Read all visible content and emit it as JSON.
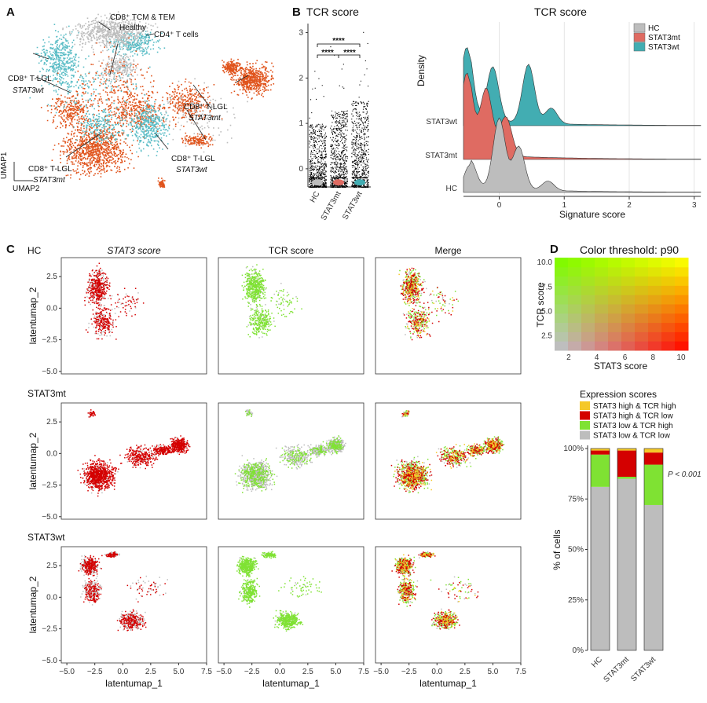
{
  "panels": {
    "a": "A",
    "b": "B",
    "c": "C",
    "d": "D"
  },
  "colors": {
    "hc": "#bdbdbd",
    "stat3mt": "#e0531b",
    "stat3wt": "#5bbdc6",
    "red": "#d40000",
    "green": "#7fe233",
    "yellow": "#f5c829",
    "mtRidge": "#df6b62",
    "wtRidge": "#42adb2"
  },
  "panel_a": {
    "annotations": [
      {
        "main": "CD8⁺ TCM & TEM",
        "sub": "Healthy"
      },
      {
        "main": "CD4⁺ T cells",
        "sub": ""
      },
      {
        "main": "CD8⁺ T-LGL",
        "sub": "STAT3wt"
      },
      {
        "main": "CD8⁺ T-LGL",
        "sub": "STAT3mt"
      },
      {
        "main": "CD8⁺ T-LGL",
        "sub": "STAT3wt"
      },
      {
        "main": "CD8⁺ T-LGL",
        "sub": "STAT3mt"
      }
    ],
    "axis1": "UMAP1",
    "axis2": "UMAP2"
  },
  "chart_data": [
    {
      "id": "B-violin",
      "type": "violin",
      "title": "TCR score",
      "categories": [
        "HC",
        "STAT3mt",
        "STAT3wt"
      ],
      "ylim": [
        -0.4,
        3.2
      ],
      "yticks": [
        0,
        1,
        2,
        3
      ],
      "approx_max": [
        1.0,
        1.3,
        1.5
      ],
      "approx_min": [
        -0.4,
        -0.4,
        -0.4
      ],
      "significance": [
        {
          "pair": [
            "HC",
            "STAT3wt"
          ],
          "label": "****"
        },
        {
          "pair": [
            "HC",
            "STAT3mt"
          ],
          "label": "****"
        },
        {
          "pair": [
            "STAT3mt",
            "STAT3wt"
          ],
          "label": "****"
        }
      ]
    },
    {
      "id": "B-ridge",
      "type": "area",
      "title": "TCR score",
      "xlabel": "Signature score",
      "ylabel": "Density",
      "xlim": [
        -0.55,
        3.1
      ],
      "xticks": [
        0,
        1,
        2,
        3
      ],
      "legend": {
        "position": "top-right",
        "entries": [
          "HC",
          "STAT3mt",
          "STAT3wt"
        ]
      },
      "series": [
        {
          "name": "HC",
          "modes": [
            {
              "x": -0.45,
              "h": 0.35
            },
            {
              "x": 0.0,
              "h": 0.9
            },
            {
              "x": 0.3,
              "h": 0.55
            },
            {
              "x": 0.75,
              "h": 0.12
            }
          ]
        },
        {
          "name": "STAT3mt",
          "modes": [
            {
              "x": -0.5,
              "h": 1.1
            },
            {
              "x": -0.2,
              "h": 0.85
            },
            {
              "x": 0.1,
              "h": 0.5
            }
          ]
        },
        {
          "name": "STAT3wt",
          "modes": [
            {
              "x": -0.5,
              "h": 1.0
            },
            {
              "x": -0.1,
              "h": 0.7
            },
            {
              "x": 0.45,
              "h": 0.75
            },
            {
              "x": 0.8,
              "h": 0.2
            }
          ]
        }
      ]
    },
    {
      "id": "C-umap-grid",
      "type": "scatter",
      "column_titles": [
        "STAT3 score",
        "TCR score",
        "Merge"
      ],
      "row_labels": [
        "HC",
        "STAT3mt",
        "STAT3wt"
      ],
      "xlabel": "latentumap_1",
      "ylabel": "latentumap_2",
      "xlim": [
        -5.5,
        7.5
      ],
      "ylim": [
        -5.2,
        4.0
      ],
      "xticks": [
        -5.0,
        -2.5,
        0.0,
        2.5,
        5.0,
        7.5
      ],
      "yticks": [
        -5.0,
        -2.5,
        0.0,
        2.5
      ],
      "xtick_labels": [
        "−5.0",
        "−2.5",
        "0.0",
        "2.5",
        "5.0",
        "7.5"
      ],
      "ytick_labels": [
        "−5.0",
        "−2.5",
        "0.0",
        "2.5"
      ]
    },
    {
      "id": "D-heatmap",
      "type": "heatmap",
      "title": "Color threshold: p90",
      "xlabel": "STAT3 score",
      "ylabel": "TCR score",
      "xticks": [
        2,
        4,
        6,
        8,
        10
      ],
      "yticks": [
        2.5,
        5.0,
        7.5,
        10.0
      ],
      "ytick_labels": [
        "2.5",
        "5.0",
        "7.5",
        "10.0"
      ],
      "grid_size": 10
    },
    {
      "id": "D-bar",
      "type": "bar",
      "stacked": true,
      "legend_title": "Expression scores",
      "categories": [
        "HC",
        "STAT3mt",
        "STAT3wt"
      ],
      "ylabel": "% of cells",
      "ylim": [
        0,
        100
      ],
      "yticks": [
        0,
        25,
        50,
        75,
        100
      ],
      "ytick_labels": [
        "0%",
        "25%",
        "50%",
        "75%",
        "100%"
      ],
      "series": [
        {
          "name": "STAT3 low & TCR low",
          "values": [
            81,
            85,
            72
          ]
        },
        {
          "name": "STAT3 low & TCR high",
          "values": [
            16,
            1,
            20
          ]
        },
        {
          "name": "STAT3 high & TCR low",
          "values": [
            2,
            13,
            6
          ]
        },
        {
          "name": "STAT3 high & TCR high",
          "values": [
            1,
            1,
            2
          ]
        }
      ],
      "annotation": "P < 0.001"
    }
  ]
}
